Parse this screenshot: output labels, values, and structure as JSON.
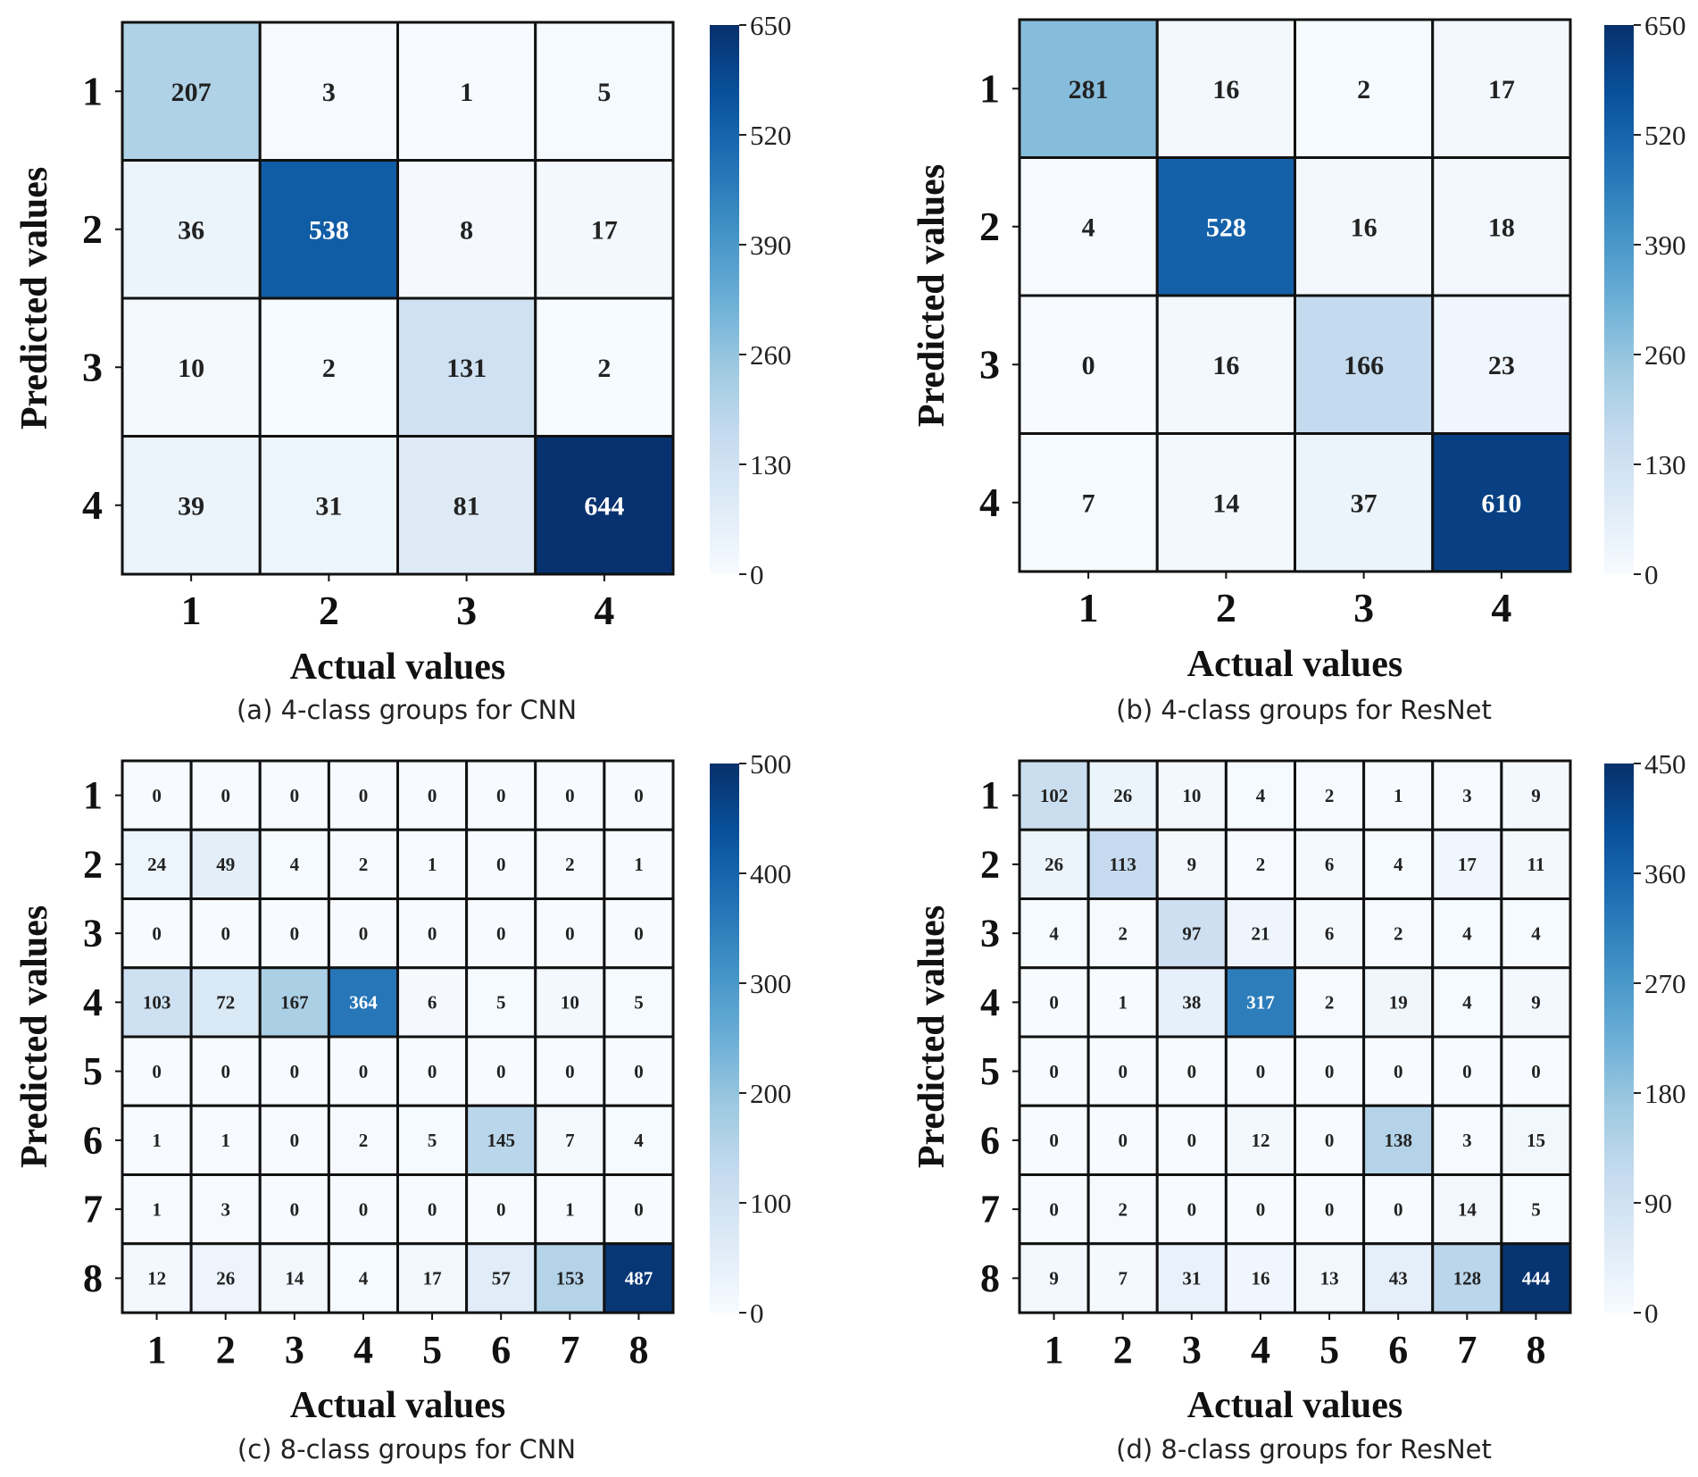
{
  "chart_data": [
    {
      "type": "heatmap",
      "caption": "(a) 4-class groups for CNN",
      "xlabel": "Actual values",
      "ylabel": "Predicted values",
      "x_categories": [
        "1",
        "2",
        "3",
        "4"
      ],
      "y_categories": [
        "1",
        "2",
        "3",
        "4"
      ],
      "values": [
        [
          207,
          3,
          1,
          5
        ],
        [
          36,
          538,
          8,
          17
        ],
        [
          10,
          2,
          131,
          2
        ],
        [
          39,
          31,
          81,
          644
        ]
      ],
      "colorbar": {
        "min": 0,
        "max": 650,
        "ticks": [
          "0",
          "130",
          "260",
          "390",
          "520",
          "650"
        ]
      },
      "colormap": [
        "#f7fbff",
        "#deebf7",
        "#c6dbef",
        "#9ecae1",
        "#6baed6",
        "#4292c6",
        "#2171b5",
        "#08519c",
        "#08306b"
      ]
    },
    {
      "type": "heatmap",
      "caption": "(b) 4-class groups for ResNet",
      "xlabel": "Actual values",
      "ylabel": "Predicted values",
      "x_categories": [
        "1",
        "2",
        "3",
        "4"
      ],
      "y_categories": [
        "1",
        "2",
        "3",
        "4"
      ],
      "values": [
        [
          281,
          16,
          2,
          17
        ],
        [
          4,
          528,
          16,
          18
        ],
        [
          0,
          16,
          166,
          23
        ],
        [
          7,
          14,
          37,
          610
        ]
      ],
      "colorbar": {
        "min": 0,
        "max": 650,
        "ticks": [
          "0",
          "130",
          "260",
          "390",
          "520",
          "650"
        ]
      },
      "colormap": [
        "#f7fbff",
        "#deebf7",
        "#c6dbef",
        "#9ecae1",
        "#6baed6",
        "#4292c6",
        "#2171b5",
        "#08519c",
        "#08306b"
      ]
    },
    {
      "type": "heatmap",
      "caption": "(c) 8-class groups for CNN",
      "xlabel": "Actual values",
      "ylabel": "Predicted values",
      "x_categories": [
        "1",
        "2",
        "3",
        "4",
        "5",
        "6",
        "7",
        "8"
      ],
      "y_categories": [
        "1",
        "2",
        "3",
        "4",
        "5",
        "6",
        "7",
        "8"
      ],
      "values": [
        [
          0,
          0,
          0,
          0,
          0,
          0,
          0,
          0
        ],
        [
          24,
          49,
          4,
          2,
          1,
          0,
          2,
          1
        ],
        [
          0,
          0,
          0,
          0,
          0,
          0,
          0,
          0
        ],
        [
          103,
          72,
          167,
          364,
          6,
          5,
          10,
          5
        ],
        [
          0,
          0,
          0,
          0,
          0,
          0,
          0,
          0
        ],
        [
          1,
          1,
          0,
          2,
          5,
          145,
          7,
          4
        ],
        [
          1,
          3,
          0,
          0,
          0,
          0,
          1,
          0
        ],
        [
          12,
          26,
          14,
          4,
          17,
          57,
          153,
          487
        ]
      ],
      "colorbar": {
        "min": 0,
        "max": 500,
        "ticks": [
          "0",
          "100",
          "200",
          "300",
          "400",
          "500"
        ]
      },
      "colormap": [
        "#f7fbff",
        "#deebf7",
        "#c6dbef",
        "#9ecae1",
        "#6baed6",
        "#4292c6",
        "#2171b5",
        "#08519c",
        "#08306b"
      ]
    },
    {
      "type": "heatmap",
      "caption": "(d) 8-class groups for ResNet",
      "xlabel": "Actual values",
      "ylabel": "Predicted values",
      "x_categories": [
        "1",
        "2",
        "3",
        "4",
        "5",
        "6",
        "7",
        "8"
      ],
      "y_categories": [
        "1",
        "2",
        "3",
        "4",
        "5",
        "6",
        "7",
        "8"
      ],
      "values": [
        [
          102,
          26,
          10,
          4,
          2,
          1,
          3,
          9
        ],
        [
          26,
          113,
          9,
          2,
          6,
          4,
          17,
          11
        ],
        [
          4,
          2,
          97,
          21,
          6,
          2,
          4,
          4
        ],
        [
          0,
          1,
          38,
          317,
          2,
          19,
          4,
          9
        ],
        [
          0,
          0,
          0,
          0,
          0,
          0,
          0,
          0
        ],
        [
          0,
          0,
          0,
          12,
          0,
          138,
          3,
          15
        ],
        [
          0,
          2,
          0,
          0,
          0,
          0,
          14,
          5
        ],
        [
          9,
          7,
          31,
          16,
          13,
          43,
          128,
          444
        ]
      ],
      "colorbar": {
        "min": 0,
        "max": 450,
        "ticks": [
          "0",
          "90",
          "180",
          "270",
          "360",
          "450"
        ]
      },
      "colormap": [
        "#f7fbff",
        "#deebf7",
        "#c6dbef",
        "#9ecae1",
        "#6baed6",
        "#4292c6",
        "#2171b5",
        "#08519c",
        "#08306b"
      ]
    }
  ]
}
